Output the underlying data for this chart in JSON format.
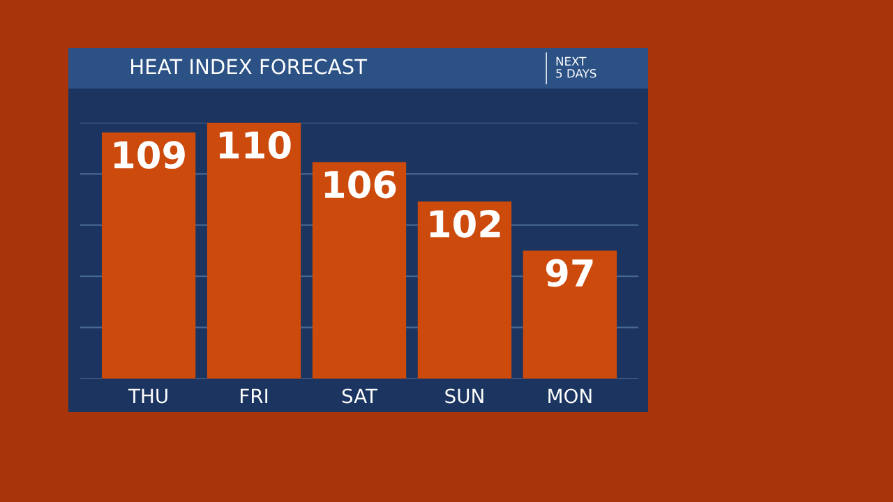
{
  "chart_data": {
    "type": "bar",
    "title": "HEAT INDEX FORECAST",
    "subtitle": "NEXT\n5 DAYS",
    "categories": [
      "THU",
      "FRI",
      "SAT",
      "SUN",
      "MON"
    ],
    "values": [
      109,
      110,
      106,
      102,
      97
    ],
    "color": "#cc4a0c",
    "ylim": [
      84,
      110
    ],
    "yticks": [
      {
        "value": 84,
        "label": null
      },
      {
        "value": 89.2,
        "label": null
      },
      {
        "value": 94.4,
        "label": null
      },
      {
        "value": 99.6,
        "label": null
      },
      {
        "value": 104.8,
        "label": null
      },
      {
        "value": 110,
        "label": null
      }
    ],
    "grid": "y",
    "data_labels": true,
    "tick_labels": "x"
  }
}
